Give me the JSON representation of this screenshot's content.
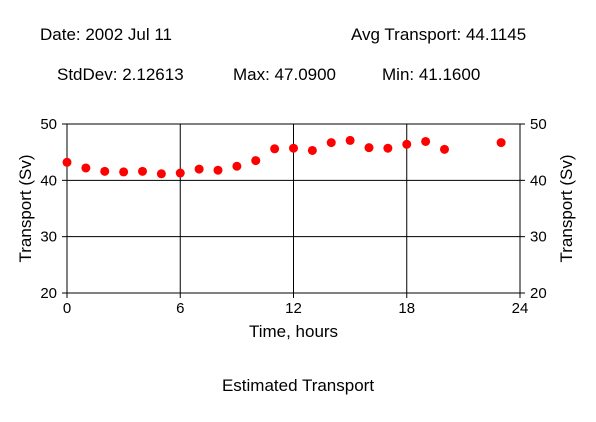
{
  "header": {
    "date": "Date: 2002 Jul 11",
    "avg": "Avg Transport: 44.1145",
    "stddev": "StdDev: 2.12613",
    "max": "Max: 47.0900",
    "min": "Min: 41.1600"
  },
  "caption": "Estimated Transport",
  "colors": {
    "points": "#ff0000",
    "axes": "#000000"
  },
  "chart_data": {
    "type": "scatter",
    "xlabel": "Time, hours",
    "ylabel": "Transport (Sv)",
    "xlim": [
      0,
      24
    ],
    "ylim": [
      20,
      50
    ],
    "xticks": [
      0,
      6,
      12,
      18,
      24
    ],
    "yticks": [
      20,
      30,
      40,
      50
    ],
    "xtick_labels": [
      "0",
      "6",
      "12",
      "18",
      "24"
    ],
    "ytick_labels": [
      "20",
      "30",
      "40",
      "50"
    ],
    "grid": true,
    "series": [
      {
        "x": [
          0,
          1,
          2,
          3,
          4,
          5,
          6,
          7,
          8,
          9,
          10,
          11,
          12,
          13,
          14,
          15,
          16,
          17,
          18,
          19,
          20,
          23
        ],
        "y": [
          43.2,
          42.2,
          41.6,
          41.5,
          41.6,
          41.16,
          41.3,
          42.0,
          41.8,
          42.5,
          43.5,
          45.6,
          45.7,
          45.3,
          46.7,
          47.09,
          45.8,
          45.7,
          46.4,
          46.9,
          45.5,
          46.7
        ]
      }
    ]
  }
}
